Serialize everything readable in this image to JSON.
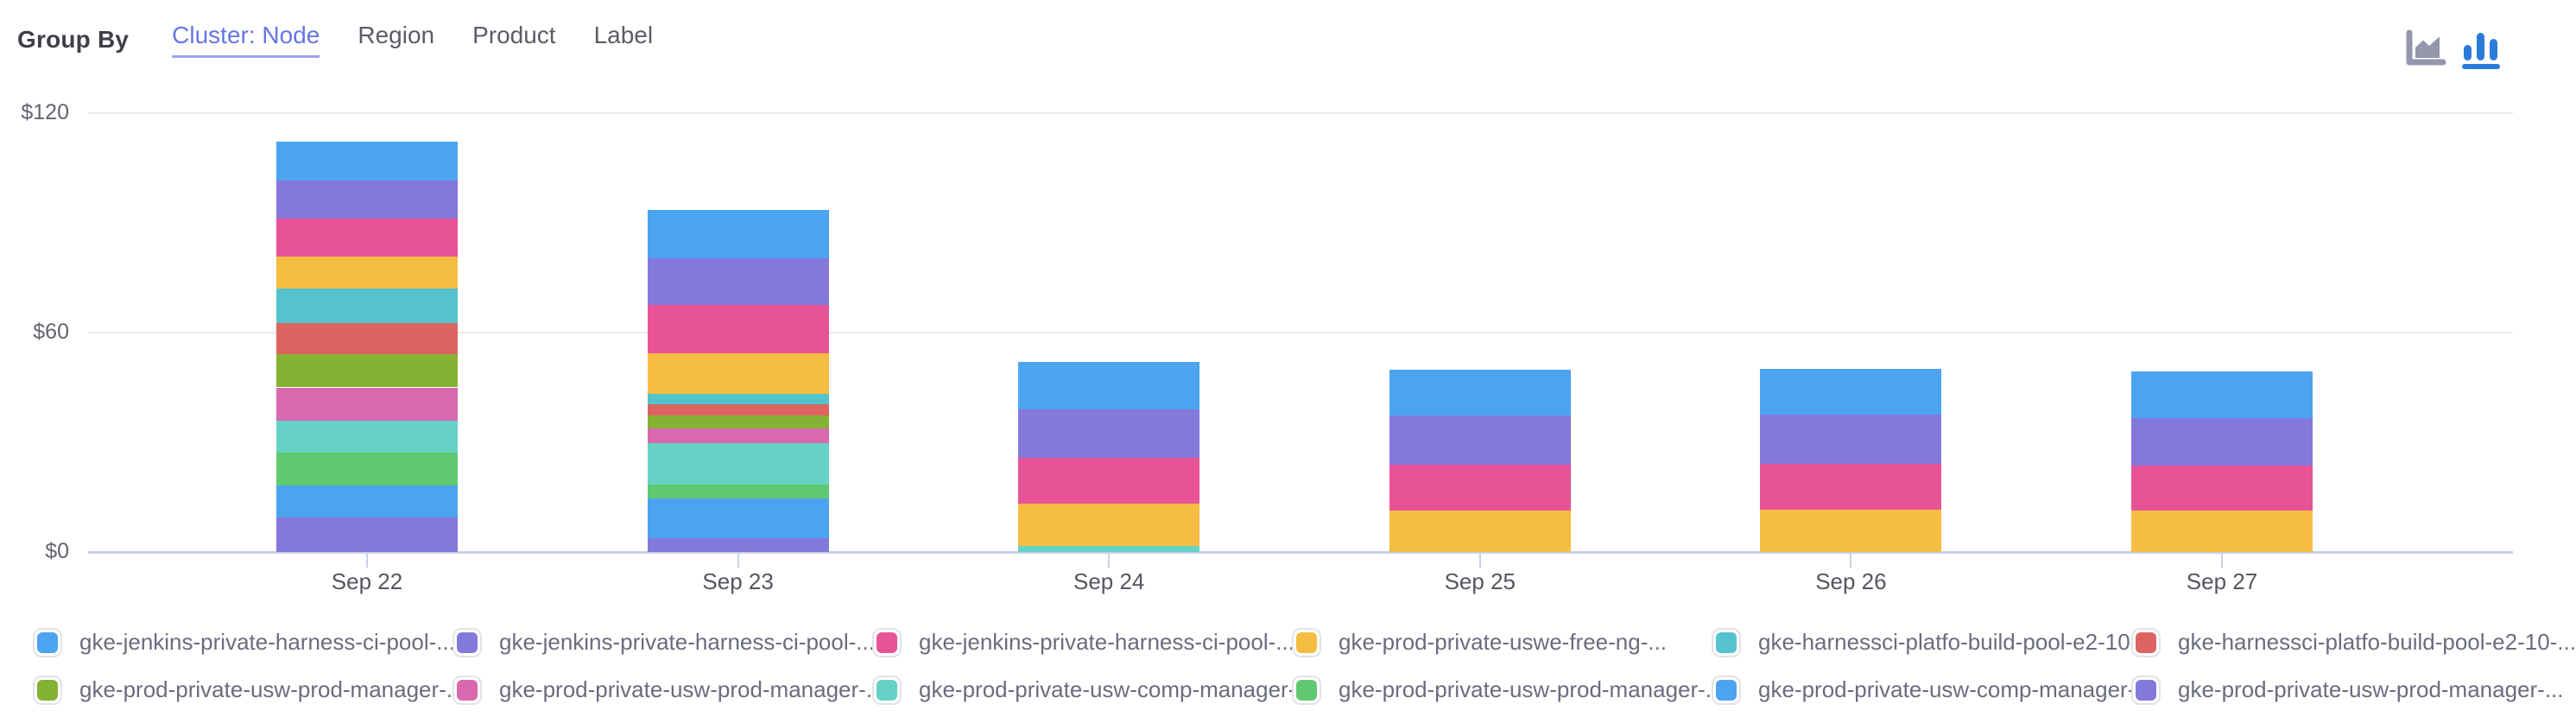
{
  "header": {
    "group_by_label": "Group By",
    "tabs": [
      {
        "label": "Cluster: Node",
        "active": true
      },
      {
        "label": "Region",
        "active": false
      },
      {
        "label": "Product",
        "active": false
      },
      {
        "label": "Label",
        "active": false
      }
    ],
    "chart_type_toggle": [
      {
        "name": "area-chart-icon",
        "active": false
      },
      {
        "name": "column-chart-icon",
        "active": true
      }
    ]
  },
  "chart_data": {
    "type": "bar",
    "stacked": true,
    "orientation": "vertical",
    "title": "",
    "xlabel": "",
    "ylabel": "",
    "unit": "$",
    "grid": true,
    "legend_position": "bottom",
    "categories": [
      "Sep 22",
      "Sep 23",
      "Sep 24",
      "Sep 25",
      "Sep 26",
      "Sep 27"
    ],
    "y_axis": {
      "min": 0,
      "max": 120,
      "ticks": [
        {
          "value": 0,
          "label": "$0"
        },
        {
          "value": 60,
          "label": "$60"
        },
        {
          "value": 120,
          "label": "$120"
        }
      ]
    },
    "series": [
      {
        "name": "gke-jenkins-private-harness-ci-pool-...",
        "color": "#4CA4F0",
        "values": [
          10.6,
          13.2,
          13.0,
          12.5,
          12.5,
          12.8
        ]
      },
      {
        "name": "gke-jenkins-private-harness-ci-pool-...",
        "color": "#8478DB",
        "values": [
          10.4,
          12.8,
          13.2,
          13.5,
          13.5,
          13.0
        ]
      },
      {
        "name": "gke-jenkins-private-harness-ci-pool-...",
        "color": "#E85397",
        "values": [
          10.4,
          13.2,
          12.5,
          12.5,
          12.5,
          12.3
        ]
      },
      {
        "name": "gke-prod-private-uswe-free-ng-...",
        "color": "#F5BD42",
        "values": [
          8.7,
          11.1,
          11.6,
          11.3,
          11.6,
          11.3
        ]
      },
      {
        "name": "gke-harnessci-platfo-build-pool-e2-10-...",
        "color": "#54C3CE",
        "values": [
          9.4,
          2.8,
          0,
          0,
          0,
          0
        ]
      },
      {
        "name": "gke-harnessci-platfo-build-pool-e2-10-...",
        "color": "#DD6461",
        "values": [
          8.7,
          3.1,
          0,
          0,
          0,
          0
        ]
      },
      {
        "name": "gke-prod-private-usw-prod-manager-...",
        "color": "#85B233",
        "values": [
          9.0,
          3.5,
          0,
          0,
          0,
          0
        ]
      },
      {
        "name": "gke-prod-private-usw-prod-manager-...",
        "color": "#D968AF",
        "values": [
          9.2,
          4.0,
          0,
          0,
          0,
          0
        ]
      },
      {
        "name": "gke-prod-private-usw-comp-manager-...",
        "color": "#66D2C6",
        "values": [
          8.7,
          11.3,
          1.7,
          0,
          0,
          0
        ]
      },
      {
        "name": "gke-prod-private-usw-prod-manager-...",
        "color": "#60C96F",
        "values": [
          9.0,
          3.8,
          0,
          0,
          0,
          0
        ]
      },
      {
        "name": "gke-prod-private-usw-comp-manager-...",
        "color": "#4CA4F0",
        "values": [
          8.7,
          10.9,
          0,
          0,
          0,
          0
        ]
      },
      {
        "name": "gke-prod-private-usw-prod-manager-...",
        "color": "#8478DB",
        "values": [
          9.4,
          3.8,
          0,
          0,
          0,
          0
        ]
      }
    ]
  },
  "colors": {
    "background": "#FFFFFF",
    "group_by_label": "#3E3F4A",
    "active_tab": "#6576E4",
    "active_tab_underline": "#9AA5EF",
    "inactive_tab": "#5B5C66",
    "gridline": "#E9EAEF",
    "axis_line": "#C9D0E6",
    "y_label": "#63646F",
    "x_label": "#55565F",
    "legend_text": "#6A6C7E",
    "swatch_border": "#E2E3EA",
    "icon_inactive": "#9496AC",
    "icon_active": "#2B7CD9"
  }
}
